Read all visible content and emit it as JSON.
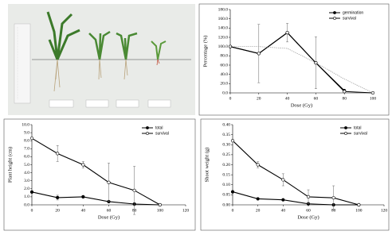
{
  "chart_data": [
    {
      "type": "line",
      "y_label": "Percentage (%)",
      "x_label": "Dose (Gy)",
      "x": [
        0,
        20,
        40,
        60,
        80,
        100
      ],
      "xlim": [
        0,
        100
      ],
      "xticks": [
        0,
        20,
        40,
        60,
        80,
        100
      ],
      "ylim": [
        0,
        180
      ],
      "yticks": [
        {
          "value": 0,
          "label": "0.0"
        },
        {
          "value": 20,
          "label": "20.0"
        },
        {
          "value": 40,
          "label": "40.0"
        },
        {
          "value": 60,
          "label": "60.0"
        },
        {
          "value": 80,
          "label": "80.0"
        },
        {
          "value": 100,
          "label": "100.0"
        },
        {
          "value": 120,
          "label": "120.0"
        },
        {
          "value": 140,
          "label": "140.0"
        },
        {
          "value": 160,
          "label": "160.0"
        },
        {
          "value": 180,
          "label": "180.0"
        }
      ],
      "legend": "upper right",
      "series": [
        {
          "name": "germination",
          "color": "#000000",
          "marker": "filled",
          "values": [
            100,
            85,
            130,
            65,
            5,
            null
          ],
          "errors": [
            null,
            null,
            null,
            null,
            null,
            null
          ]
        },
        {
          "name": "survival",
          "color": "#000000",
          "marker": "open",
          "values": [
            100,
            85,
            130,
            65,
            3,
            0
          ],
          "errors": [
            null,
            63,
            20,
            56,
            null,
            null
          ]
        },
        {
          "color": "#9a9a9a",
          "marker": "none",
          "dashed": true,
          "values": [
            100,
            100,
            96,
            65,
            30,
            0
          ]
        }
      ]
    },
    {
      "type": "line",
      "y_label": "Plant height (cm)",
      "x_label": "Dose (Gy)",
      "x": [
        0,
        20,
        40,
        60,
        80,
        100
      ],
      "xlim": [
        0,
        120
      ],
      "xticks": [
        0,
        20,
        40,
        60,
        80,
        100,
        120
      ],
      "ylim": [
        0,
        10
      ],
      "yticks": [
        {
          "value": 0,
          "label": "0.0"
        },
        {
          "value": 1,
          "label": "1.0"
        },
        {
          "value": 2,
          "label": "2.0"
        },
        {
          "value": 3,
          "label": "3.0"
        },
        {
          "value": 4,
          "label": "4.0"
        },
        {
          "value": 5,
          "label": "5.0"
        },
        {
          "value": 6,
          "label": "6.0"
        },
        {
          "value": 7,
          "label": "7.0"
        },
        {
          "value": 8,
          "label": "8.0"
        },
        {
          "value": 9,
          "label": "9.0"
        },
        {
          "value": 10,
          "label": "10.0"
        }
      ],
      "legend": "upper right",
      "series": [
        {
          "name": "total",
          "color": "#000000",
          "marker": "filled",
          "values": [
            1.6,
            0.9,
            1.0,
            0.4,
            0.1,
            0
          ],
          "errors": [
            null,
            0.3,
            0.15,
            null,
            null,
            null
          ]
        },
        {
          "name": "survival",
          "color": "#000000",
          "marker": "open",
          "values": [
            8.3,
            6.4,
            5.0,
            2.8,
            1.8,
            0
          ],
          "errors": [
            null,
            1.0,
            0.4,
            2.4,
            3.0,
            null
          ]
        }
      ]
    },
    {
      "type": "line",
      "y_label": "Shoot weight (g)",
      "x_label": "Dose (Gy)",
      "x": [
        0,
        20,
        40,
        60,
        80,
        100
      ],
      "xlim": [
        0,
        120
      ],
      "xticks": [
        0,
        20,
        40,
        60,
        80,
        100,
        120
      ],
      "ylim": [
        0,
        0.4
      ],
      "yticks": [
        {
          "value": 0,
          "label": "0.00"
        },
        0.05,
        {
          "value": 0.1,
          "label": "0.10"
        },
        0.15,
        {
          "value": 0.2,
          "label": "0.20"
        },
        0.25,
        {
          "value": 0.3,
          "label": "0.30"
        },
        0.35,
        {
          "value": 0.4,
          "label": "0.40"
        }
      ],
      "legend": "upper right",
      "series": [
        {
          "name": "total",
          "color": "#000000",
          "marker": "filled",
          "values": [
            0.065,
            0.03,
            0.025,
            0.005,
            0,
            0
          ],
          "errors": [
            null,
            null,
            null,
            null,
            null,
            null
          ]
        },
        {
          "name": "survival",
          "color": "#000000",
          "marker": "open",
          "values": [
            0.32,
            0.2,
            0.125,
            0.04,
            0.035,
            0
          ],
          "errors": [
            null,
            0.015,
            0.03,
            0.035,
            0.06,
            null
          ]
        }
      ]
    }
  ]
}
